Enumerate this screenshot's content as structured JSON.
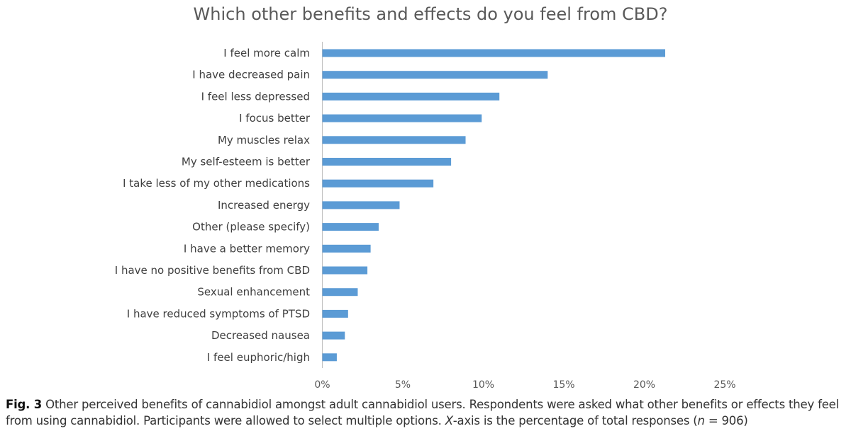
{
  "chart_data": {
    "type": "bar",
    "orientation": "horizontal",
    "title": "Which other benefits and effects do you feel from CBD?",
    "categories": [
      "I feel more calm",
      "I have decreased pain",
      "I feel less depressed",
      "I focus better",
      "My muscles relax",
      "My self-esteem is better",
      "I take less of my other medications",
      "Increased energy",
      "Other (please specify)",
      "I have a better memory",
      "I have no positive benefits from CBD",
      "Sexual enhancement",
      "I have reduced symptoms of PTSD",
      "Decreased nausea",
      "I feel euphoric/high"
    ],
    "values": [
      21.3,
      14.0,
      11.0,
      9.9,
      8.9,
      8.0,
      6.9,
      4.8,
      3.5,
      3.0,
      2.8,
      2.2,
      1.6,
      1.4,
      0.9
    ],
    "x_ticks": [
      "0%",
      "5%",
      "10%",
      "15%",
      "20%",
      "25%"
    ],
    "xlim": [
      0,
      25
    ],
    "grid": false,
    "legend": "none",
    "bar_color": "#5B9BD5"
  },
  "caption": {
    "label": "Fig. 3",
    "text_1": " Other perceived benefits of cannabidiol amongst adult cannabidiol users. Respondents were asked what other benefits or effects they feel from using cannabidiol. Participants were allowed to select multiple options. ",
    "x_italic": "X",
    "text_2": "-axis is the percentage of total responses (",
    "n_italic": "n",
    "text_3": " = 906)"
  }
}
